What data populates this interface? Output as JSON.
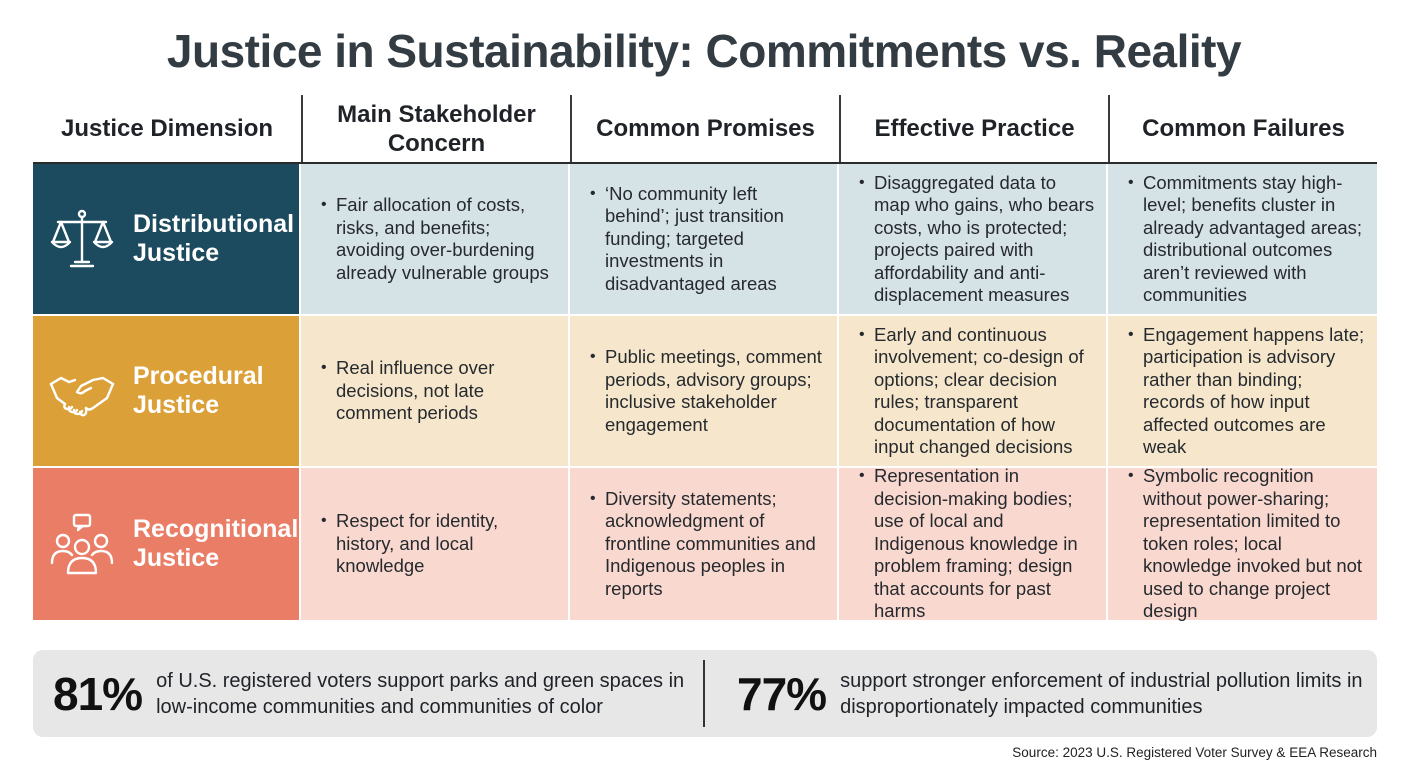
{
  "title": "Justice in Sustainability: Commitments vs. Reality",
  "headers": [
    "Justice Dimension",
    "Main Stakeholder Concern",
    "Common Promises",
    "Effective Practice",
    "Common Failures"
  ],
  "rows": [
    {
      "dimension": "Distributional Justice",
      "icon": "scales-icon",
      "color": "#1c4a5e",
      "cell_color": "#d5e2e6",
      "concern": "Fair allocation of costs, risks, and benefits; avoiding over-burdening already vulnerable groups",
      "promises": "‘No community left behind’; just transition funding; targeted investments in disadvantaged areas",
      "practice": "Disaggregated data to map who gains, who bears costs, who is protected; projects paired with affordability and anti-displacement measures",
      "failures": "Commitments stay high-level; benefits cluster in already advantaged areas; distributional outcomes aren’t reviewed with communities"
    },
    {
      "dimension": "Procedural Justice",
      "icon": "handshake-icon",
      "color": "#dca039",
      "cell_color": "#f6e7cc",
      "concern": "Real influence over decisions, not late comment periods",
      "promises": "Public meetings, comment periods, advisory groups; inclusive stakeholder engagement",
      "practice": "Early and continuous involvement; co-design of options; clear decision rules; transparent documentation of how input changed decisions",
      "failures": "Engagement happens late; participation is advisory rather than binding; records of how input affected outcomes are weak"
    },
    {
      "dimension": "Recognitional Justice",
      "icon": "people-group-icon",
      "color": "#ea7d66",
      "cell_color": "#f9d8cf",
      "concern": "Respect for identity, history, and local knowledge",
      "promises": "Diversity statements; acknowledgment of frontline communities and Indigenous peoples in reports",
      "practice": "Representation in decision-making bodies; use of local and Indigenous knowledge in problem framing; design that accounts for past harms",
      "failures": "Symbolic recognition without power-sharing; representation limited to token roles; local knowledge invoked but not used to change project design"
    }
  ],
  "stats": [
    {
      "value": "81%",
      "text": "of U.S. registered voters support parks and green spaces in low-income communities and communities of color"
    },
    {
      "value": "77%",
      "text": "support stronger enforcement of industrial pollution limits in disproportionately impacted communities"
    }
  ],
  "source": "Source: 2023 U.S. Registered Voter Survey & EEA Research"
}
